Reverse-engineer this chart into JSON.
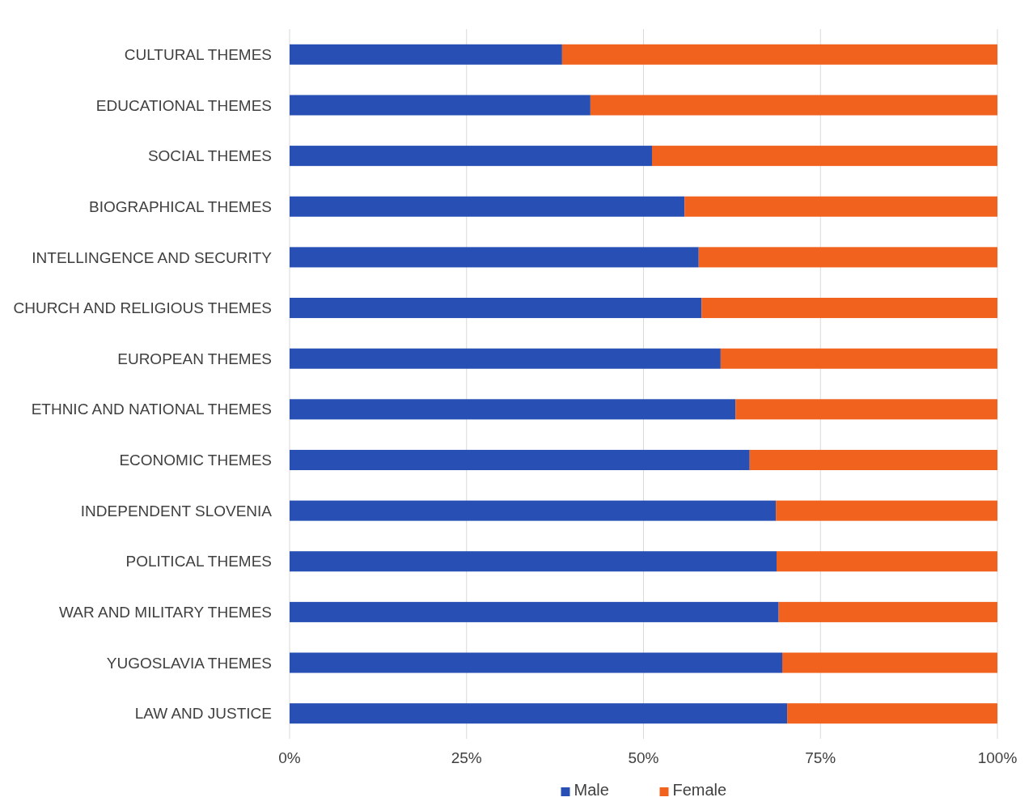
{
  "chart_data": {
    "type": "bar",
    "orientation": "horizontal",
    "stacked": true,
    "categories": [
      "CULTURAL THEMES",
      "EDUCATIONAL THEMES",
      "SOCIAL THEMES",
      "BIOGRAPHICAL THEMES",
      "INTELLINGENCE AND SECURITY",
      "CHURCH AND RELIGIOUS THEMES",
      "EUROPEAN THEMES",
      "ETHNIC AND NATIONAL THEMES",
      "ECONOMIC THEMES",
      "INDEPENDENT SLOVENIA",
      "POLITICAL THEMES",
      "WAR AND MILITARY THEMES",
      "YUGOSLAVIA THEMES",
      "LAW AND JUSTICE"
    ],
    "series": [
      {
        "name": "Male",
        "color": "#2850b4",
        "values": [
          38.5,
          42.5,
          51.2,
          55.8,
          57.8,
          58.2,
          60.9,
          63.0,
          65.0,
          68.7,
          68.8,
          69.1,
          69.6,
          70.3
        ]
      },
      {
        "name": "Female",
        "color": "#f0621e",
        "values": [
          61.5,
          57.5,
          48.8,
          44.2,
          42.2,
          41.8,
          39.1,
          37.0,
          35.0,
          31.3,
          31.2,
          30.9,
          30.4,
          29.7
        ]
      }
    ],
    "xlim": [
      0,
      100
    ],
    "xticks": [
      {
        "value": 0,
        "label": "0%"
      },
      {
        "value": 25,
        "label": "25%"
      },
      {
        "value": 50,
        "label": "50%"
      },
      {
        "value": 75,
        "label": "75%"
      },
      {
        "value": 100,
        "label": "100%"
      }
    ],
    "grid": "x",
    "legend": "bottom"
  }
}
